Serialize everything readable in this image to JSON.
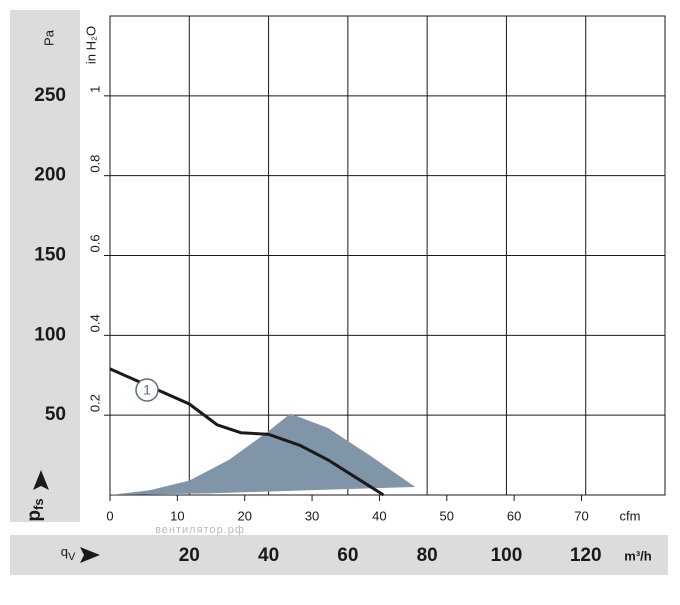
{
  "chart_data": {
    "type": "line",
    "x_unit": "m³/h",
    "x2_unit": "cfm",
    "y_unit": "Pa",
    "y2_unit": "in H₂O",
    "y_label": {
      "main": "p",
      "sub": "fs"
    },
    "x_label": {
      "main": "q",
      "sub": "V"
    },
    "watermark": "вентилятор.рф",
    "xlim": [
      0,
      140
    ],
    "xticks": [
      20,
      40,
      60,
      80,
      100,
      120
    ],
    "x2lim": [
      0,
      82.4
    ],
    "x2ticks": [
      0,
      10,
      20,
      30,
      40,
      50,
      60,
      70
    ],
    "ylim": [
      0,
      300
    ],
    "yticks": [
      50,
      100,
      150,
      200,
      250
    ],
    "y2lim": [
      0,
      1.2
    ],
    "y2ticks": [
      0.2,
      0.4,
      0.6,
      0.8,
      1
    ],
    "grid": true,
    "series": [
      {
        "type": "area",
        "color": "#8095a8",
        "x": [
          0,
          10,
          20,
          30,
          40,
          45.5,
          55,
          66,
          77,
          50,
          25,
          0
        ],
        "values": [
          0,
          3,
          9,
          22,
          40,
          51,
          42,
          24,
          5,
          3,
          1,
          0
        ]
      },
      {
        "type": "line",
        "name": "1",
        "color": "#1a1a1a",
        "x": [
          0,
          10,
          20,
          27,
          33,
          40,
          48,
          55,
          62,
          69
        ],
        "values": [
          79,
          68,
          57,
          44,
          39,
          38,
          31,
          22,
          11,
          0
        ]
      }
    ]
  }
}
